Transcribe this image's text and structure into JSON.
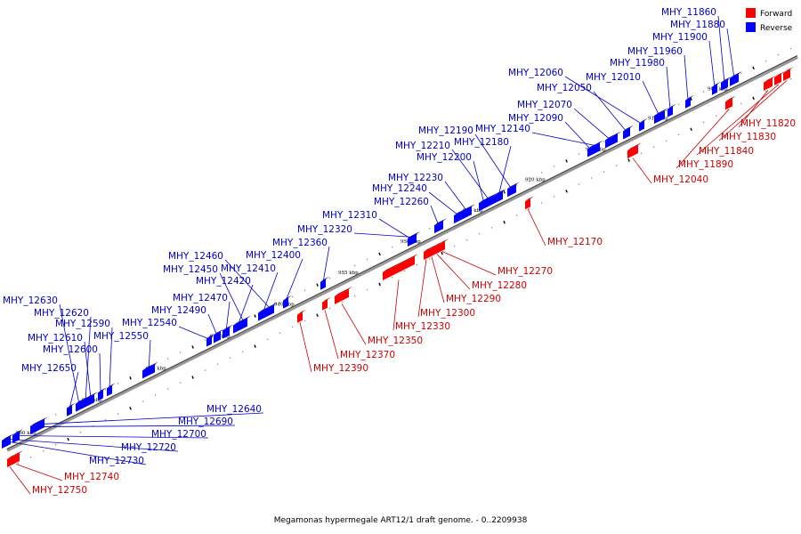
{
  "caption": "Megamonas hypermegale ART12/1 draft genome. - 0..2209938",
  "legend": [
    {
      "label": "Forward",
      "color": "#ff0000"
    },
    {
      "label": "Reverse",
      "color": "#0000ff"
    }
  ],
  "colors": {
    "forward": "#ff0000",
    "reverse": "#0000ff",
    "backbone": "#999999"
  },
  "kbp_marks": [
    "905 kbp",
    "910 kbp",
    "915 kbp",
    "920 kbp",
    "925 kbp",
    "930 kbp",
    "935 kbp",
    "940 kbp",
    "945 kbp",
    "950 kbp",
    "955 kbp",
    "960 kbp"
  ],
  "reverse_genes": [
    "MHY_11860",
    "MHY_11880",
    "MHY_11900",
    "MHY_11960",
    "MHY_11980",
    "MHY_12060",
    "MHY_12010",
    "MHY_12050",
    "MHY_12070",
    "MHY_12090",
    "MHY_12140",
    "MHY_12190",
    "MHY_12180",
    "MHY_12210",
    "MHY_12200",
    "MHY_12230",
    "MHY_12240",
    "MHY_12260",
    "MHY_12310",
    "MHY_12320",
    "MHY_12360",
    "MHY_12400",
    "MHY_12460",
    "MHY_12410",
    "MHY_12450",
    "MHY_12420",
    "MHY_12470",
    "MHY_12490",
    "MHY_12540",
    "MHY_12550",
    "MHY_12590",
    "MHY_12600",
    "MHY_12610",
    "MHY_12620",
    "MHY_12630",
    "MHY_12650",
    "MHY_12640",
    "MHY_12690",
    "MHY_12700",
    "MHY_12720",
    "MHY_12730"
  ],
  "forward_genes": [
    "MHY_11820",
    "MHY_11830",
    "MHY_11840",
    "MHY_11890",
    "MHY_12040",
    "MHY_12170",
    "MHY_12270",
    "MHY_12280",
    "MHY_12290",
    "MHY_12300",
    "MHY_12330",
    "MHY_12350",
    "MHY_12370",
    "MHY_12390",
    "MHY_12740",
    "MHY_12750"
  ]
}
